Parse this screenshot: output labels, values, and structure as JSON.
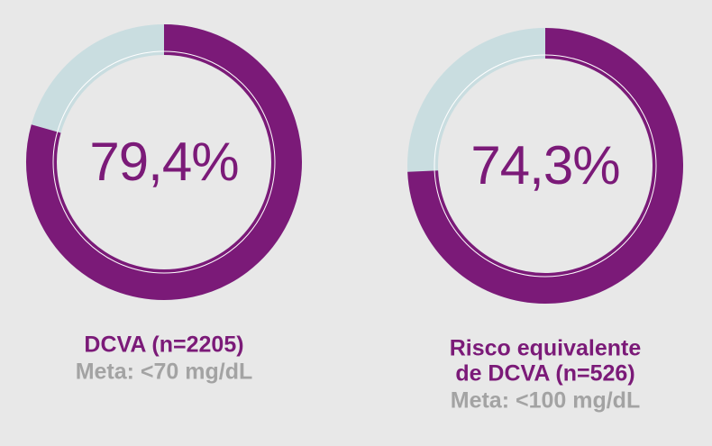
{
  "chart_data": [
    {
      "type": "donut",
      "values": [
        79.4
      ],
      "value_labels": [
        "79,4%"
      ],
      "ylim": [
        0,
        100
      ],
      "color": "#7b1a78",
      "track_color": "#c9dde0",
      "title": [
        "DCVA (n=2205)"
      ],
      "subtitle": [
        "Meta: <70 mg/dL"
      ]
    },
    {
      "type": "donut",
      "values": [
        74.3
      ],
      "value_labels": [
        "74,3%"
      ],
      "ylim": [
        0,
        100
      ],
      "color": "#7b1a78",
      "track_color": "#c9dde0",
      "title": [
        "Risco equivalente",
        "de DCVA (n=526)"
      ],
      "subtitle": [
        "Meta: <100 mg/dL"
      ]
    }
  ]
}
